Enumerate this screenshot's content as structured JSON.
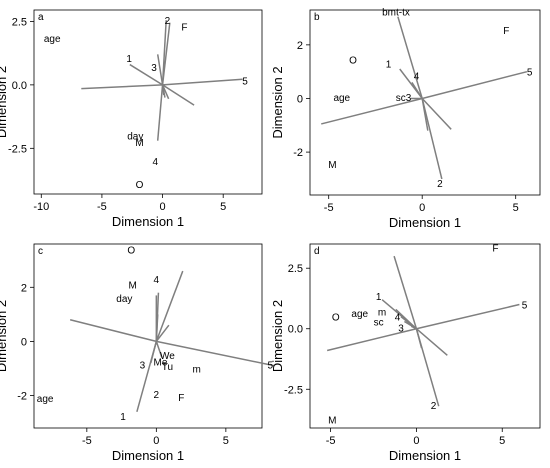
{
  "chart_data": [
    {
      "type": "scatter",
      "panel_label": "a",
      "xlabel": "Dimension 1",
      "ylabel": "Dimension 2",
      "xlim": [
        -10.6,
        8.2
      ],
      "ylim": [
        -4.3,
        2.95
      ],
      "xticks": [
        -10,
        -5,
        0,
        5
      ],
      "yticks": [
        -2.5,
        0.0,
        2.5
      ],
      "ytick_format": 1,
      "vectors": [
        {
          "name": "5",
          "x": 6.6,
          "y": 0.22
        },
        {
          "name": "2",
          "x": 0.3,
          "y": 2.55
        },
        {
          "name": "",
          "x": -6.7,
          "y": -0.15
        },
        {
          "name": "",
          "x": 2.6,
          "y": -0.8
        },
        {
          "name": "",
          "x": 0.6,
          "y": 2.45
        },
        {
          "name": "",
          "x": -0.4,
          "y": -2.2
        },
        {
          "name": "",
          "x": 0.5,
          "y": -0.55
        },
        {
          "name": "",
          "x": -0.4,
          "y": 1.2
        },
        {
          "name": "",
          "x": -2.7,
          "y": 0.8
        },
        {
          "name": "",
          "x": 0.2,
          "y": -0.5
        },
        {
          "name": "",
          "x": 0.1,
          "y": -0.4
        }
      ],
      "labels": [
        {
          "text": "F",
          "x": 1.8,
          "y": 2.25
        },
        {
          "text": "2",
          "x": 0.4,
          "y": 2.5
        },
        {
          "text": "age",
          "x": -9.1,
          "y": 1.8
        },
        {
          "text": "1",
          "x": -2.75,
          "y": 1.0
        },
        {
          "text": "3",
          "x": -0.7,
          "y": 0.65
        },
        {
          "text": "5",
          "x": 6.8,
          "y": 0.12
        },
        {
          "text": "day",
          "x": -2.25,
          "y": -2.05
        },
        {
          "text": "M",
          "x": -1.9,
          "y": -2.3
        },
        {
          "text": "4",
          "x": -0.6,
          "y": -3.05
        },
        {
          "text": "O",
          "x": -1.9,
          "y": -3.95
        }
      ]
    },
    {
      "type": "scatter",
      "panel_label": "b",
      "xlabel": "Dimension 1",
      "ylabel": "Dimension 2",
      "xlim": [
        -6.0,
        6.3
      ],
      "ylim": [
        -3.6,
        3.3
      ],
      "xticks": [
        -5,
        0,
        5
      ],
      "yticks": [
        -2,
        0,
        2
      ],
      "ytick_format": 0,
      "vectors": [
        {
          "name": "bmt-tx",
          "x": -1.3,
          "y": 3.05
        },
        {
          "name": "5",
          "x": 5.6,
          "y": 1.0
        },
        {
          "name": "2",
          "x": 1.05,
          "y": -3.0
        },
        {
          "name": "",
          "x": -5.4,
          "y": -0.95
        },
        {
          "name": "",
          "x": 1.55,
          "y": -1.15
        },
        {
          "name": "",
          "x": -1.2,
          "y": 1.1
        },
        {
          "name": "",
          "x": -0.55,
          "y": 0.6
        },
        {
          "name": "",
          "x": -0.6,
          "y": 0.0
        },
        {
          "name": "",
          "x": 0.3,
          "y": -1.2
        }
      ],
      "labels": [
        {
          "text": "bmt-tx",
          "x": -1.4,
          "y": 3.2
        },
        {
          "text": "F",
          "x": 4.5,
          "y": 2.5
        },
        {
          "text": "O",
          "x": -3.7,
          "y": 1.4
        },
        {
          "text": "1",
          "x": -1.8,
          "y": 1.25
        },
        {
          "text": "4",
          "x": -0.3,
          "y": 0.8
        },
        {
          "text": "5",
          "x": 5.75,
          "y": 0.95
        },
        {
          "text": "age",
          "x": -4.3,
          "y": 0.0
        },
        {
          "text": "sc3",
          "x": -1.0,
          "y": 0.0
        },
        {
          "text": "M",
          "x": -4.8,
          "y": -2.5
        },
        {
          "text": "2",
          "x": 0.95,
          "y": -3.2
        }
      ]
    },
    {
      "type": "scatter",
      "panel_label": "c",
      "xlabel": "Dimension 1",
      "ylabel": "Dimension 2",
      "xlim": [
        -8.8,
        7.6
      ],
      "ylim": [
        -3.2,
        3.6
      ],
      "xticks": [
        -5,
        0,
        5
      ],
      "yticks": [
        -2,
        0,
        2
      ],
      "ytick_format": 0,
      "vectors": [
        {
          "name": "5",
          "x": 8.5,
          "y": -0.9
        },
        {
          "name": "1",
          "x": -1.4,
          "y": -2.6
        },
        {
          "name": "",
          "x": -6.2,
          "y": 0.8
        },
        {
          "name": "",
          "x": 1.9,
          "y": 2.6
        },
        {
          "name": "",
          "x": 0.0,
          "y": 1.7
        },
        {
          "name": "",
          "x": 0.15,
          "y": 1.8
        },
        {
          "name": "",
          "x": 0.9,
          "y": 0.6
        },
        {
          "name": "",
          "x": 0.1,
          "y": 1.0
        },
        {
          "name": "",
          "x": -0.4,
          "y": -0.8
        },
        {
          "name": "",
          "x": 0.4,
          "y": -0.6
        }
      ],
      "labels": [
        {
          "text": "O",
          "x": -1.8,
          "y": 3.35
        },
        {
          "text": "4",
          "x": 0.0,
          "y": 2.25
        },
        {
          "text": "M",
          "x": -1.7,
          "y": 2.05
        },
        {
          "text": "day",
          "x": -2.3,
          "y": 1.55
        },
        {
          "text": "We",
          "x": 0.8,
          "y": -0.55
        },
        {
          "text": "Me",
          "x": 0.3,
          "y": -0.8
        },
        {
          "text": "3",
          "x": -1.0,
          "y": -0.9
        },
        {
          "text": "Tu",
          "x": 0.8,
          "y": -0.95
        },
        {
          "text": "m",
          "x": 2.9,
          "y": -1.05
        },
        {
          "text": "5",
          "x": 8.2,
          "y": -0.9
        },
        {
          "text": "2",
          "x": 0.0,
          "y": -2.0
        },
        {
          "text": "F",
          "x": 1.8,
          "y": -2.1
        },
        {
          "text": "age",
          "x": -8.0,
          "y": -2.15
        },
        {
          "text": "1",
          "x": -2.4,
          "y": -2.8
        }
      ]
    },
    {
      "type": "scatter",
      "panel_label": "d",
      "xlabel": "Dimension 1",
      "ylabel": "Dimension 2",
      "xlim": [
        -6.2,
        7.2
      ],
      "ylim": [
        -4.1,
        3.5
      ],
      "xticks": [
        -5,
        0,
        5
      ],
      "yticks": [
        -2.5,
        0.0,
        2.5
      ],
      "ytick_format": 1,
      "vectors": [
        {
          "name": "5",
          "x": 6.0,
          "y": 1.0
        },
        {
          "name": "2",
          "x": 1.3,
          "y": -3.2
        },
        {
          "name": "",
          "x": -5.2,
          "y": -0.9
        },
        {
          "name": "",
          "x": -1.3,
          "y": 3.0
        },
        {
          "name": "",
          "x": 1.8,
          "y": -1.1
        },
        {
          "name": "",
          "x": -2.0,
          "y": 1.2
        },
        {
          "name": "",
          "x": -1.2,
          "y": 0.8
        },
        {
          "name": "",
          "x": -0.9,
          "y": 0.5
        },
        {
          "name": "",
          "x": -0.7,
          "y": 0.3
        },
        {
          "name": "",
          "x": -0.3,
          "y": 0.1
        },
        {
          "name": "",
          "x": 0.3,
          "y": -0.8
        }
      ],
      "labels": [
        {
          "text": "F",
          "x": 4.6,
          "y": 3.3
        },
        {
          "text": "1",
          "x": -2.2,
          "y": 1.3
        },
        {
          "text": "age",
          "x": -3.3,
          "y": 0.6
        },
        {
          "text": "m",
          "x": -2.0,
          "y": 0.65
        },
        {
          "text": "4",
          "x": -1.1,
          "y": 0.45
        },
        {
          "text": "sc",
          "x": -2.2,
          "y": 0.25
        },
        {
          "text": "3",
          "x": -0.9,
          "y": 0.0
        },
        {
          "text": "O",
          "x": -4.7,
          "y": 0.45
        },
        {
          "text": "5",
          "x": 6.3,
          "y": 0.95
        },
        {
          "text": "2",
          "x": 1.0,
          "y": -3.2
        },
        {
          "text": "M",
          "x": -4.9,
          "y": -3.8
        }
      ]
    }
  ]
}
